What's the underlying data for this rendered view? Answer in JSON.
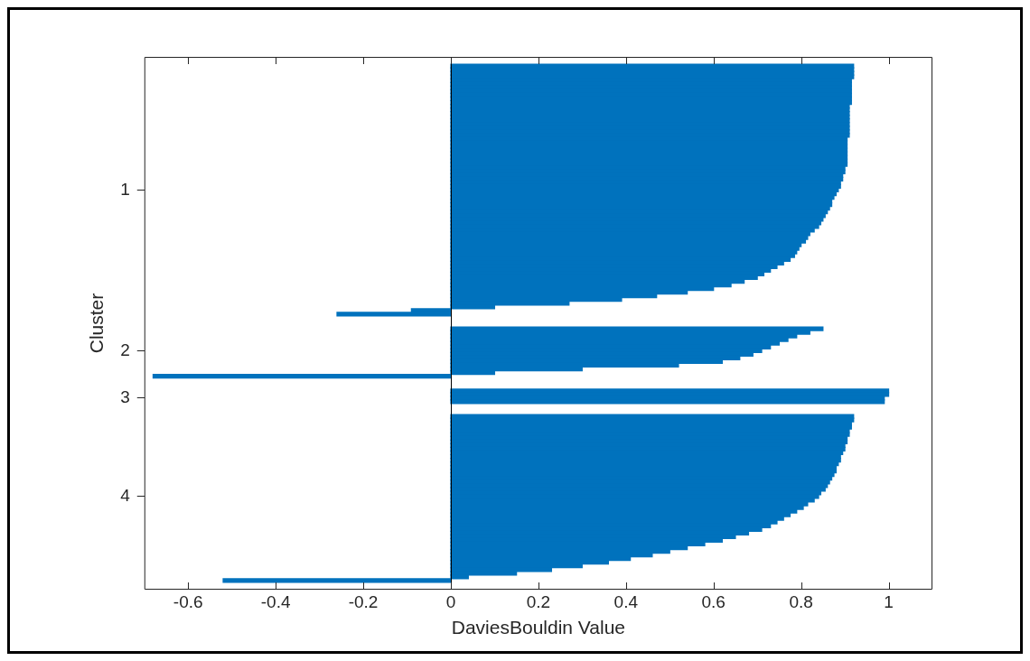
{
  "chart_data": {
    "type": "bar",
    "orientation": "horizontal",
    "xlabel": "DaviesBouldin Value",
    "ylabel": "Cluster",
    "color": "#0072bd",
    "xlim": [
      -0.7,
      1.1
    ],
    "xticks": [
      -0.6,
      -0.4,
      -0.2,
      0,
      0.2,
      0.4,
      0.6,
      0.8,
      1
    ],
    "categories": [
      null,
      null,
      null,
      null,
      null,
      null,
      null,
      null,
      null,
      null,
      null,
      null,
      null,
      null,
      null,
      null,
      null,
      null,
      null,
      null,
      null,
      null,
      null,
      null,
      null,
      null,
      null,
      null,
      null,
      null,
      null,
      null,
      null,
      null,
      null,
      null,
      "1",
      null,
      null,
      null,
      null,
      null,
      null,
      null,
      null,
      null,
      null,
      null,
      null,
      null,
      null,
      null,
      null,
      null,
      null,
      null,
      null,
      null,
      null,
      null,
      null,
      null,
      null,
      null,
      null,
      null,
      null,
      null,
      null,
      null,
      null,
      null,
      null,
      null,
      null,
      null,
      null,
      null,
      null,
      null,
      "2",
      null,
      null,
      null,
      null,
      null,
      null,
      null,
      null,
      null,
      null,
      null,
      null,
      "3",
      null,
      null,
      null,
      null,
      null,
      null,
      null,
      null,
      null,
      null,
      null,
      null,
      null,
      null,
      null,
      null,
      null,
      null,
      null,
      null,
      null,
      null,
      null,
      null,
      null,
      null,
      "4",
      null,
      null,
      null,
      null,
      null,
      null,
      null,
      null,
      null,
      null,
      null,
      null,
      null,
      null,
      null,
      null,
      null,
      null,
      null,
      null,
      null,
      null,
      null,
      null,
      null
    ],
    "values": [
      null,
      null,
      0.92,
      0.92,
      0.92,
      0.92,
      0.915,
      0.915,
      0.915,
      0.915,
      0.915,
      0.915,
      0.915,
      0.91,
      0.91,
      0.91,
      0.91,
      0.91,
      0.91,
      0.91,
      0.91,
      0.91,
      0.905,
      0.905,
      0.905,
      0.905,
      0.905,
      0.905,
      0.905,
      0.905,
      0.9,
      0.9,
      0.895,
      0.895,
      0.89,
      0.89,
      0.885,
      0.88,
      0.875,
      0.87,
      0.87,
      0.865,
      0.86,
      0.855,
      0.85,
      0.845,
      0.84,
      0.83,
      0.82,
      0.815,
      0.81,
      0.8,
      0.795,
      0.79,
      0.785,
      0.775,
      0.76,
      0.745,
      0.73,
      0.715,
      0.7,
      0.67,
      0.64,
      0.6,
      0.54,
      0.47,
      0.39,
      0.27,
      0.1,
      -0.09,
      -0.26,
      null,
      null,
      null,
      0.85,
      0.82,
      0.79,
      0.77,
      0.75,
      0.73,
      0.71,
      0.69,
      0.66,
      0.62,
      0.52,
      0.3,
      0.1,
      -0.68,
      null,
      null,
      null,
      1.0,
      1.0,
      0.99,
      0.99,
      null,
      null,
      null,
      0.92,
      0.92,
      0.915,
      0.915,
      0.91,
      0.91,
      0.905,
      0.905,
      0.9,
      0.9,
      0.895,
      0.89,
      0.89,
      0.885,
      0.88,
      0.88,
      0.875,
      0.87,
      0.865,
      0.86,
      0.855,
      0.845,
      0.84,
      0.83,
      0.815,
      0.805,
      0.79,
      0.775,
      0.76,
      0.745,
      0.73,
      0.71,
      0.68,
      0.65,
      0.62,
      0.58,
      0.54,
      0.5,
      0.46,
      0.41,
      0.36,
      0.3,
      0.23,
      0.15,
      0.04,
      -0.52,
      null,
      null
    ]
  }
}
